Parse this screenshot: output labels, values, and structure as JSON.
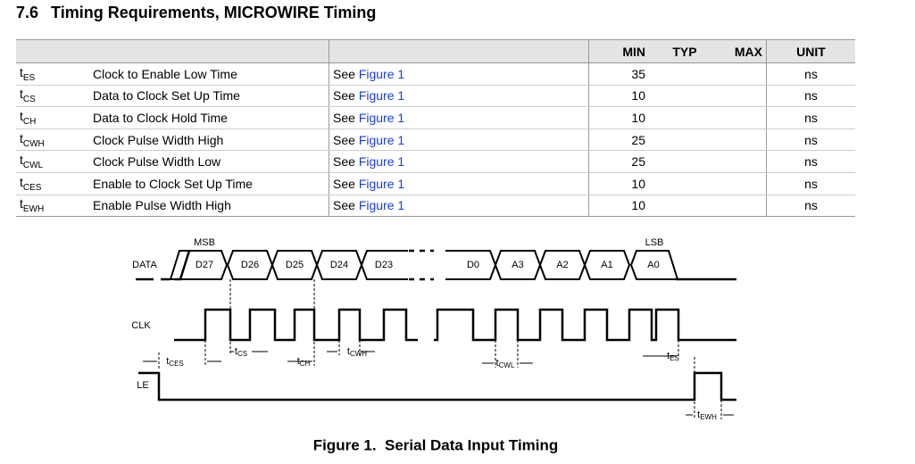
{
  "section": {
    "number": "7.6",
    "title": "Timing Requirements, MICROWIRE Timing"
  },
  "table": {
    "header": {
      "min": "MIN",
      "typ": "TYP",
      "max": "MAX",
      "unit": "UNIT"
    },
    "rows": [
      {
        "symbol": "t",
        "sub": "ES",
        "parameter": "Clock to Enable Low Time",
        "see": "See",
        "link": "Figure 1",
        "min": 35,
        "unit": "ns"
      },
      {
        "symbol": "t",
        "sub": "CS",
        "parameter": "Data to Clock Set Up Time",
        "see": "See",
        "link": "Figure 1",
        "min": 10,
        "unit": "ns"
      },
      {
        "symbol": "t",
        "sub": "CH",
        "parameter": "Data to Clock Hold Time",
        "see": "See",
        "link": "Figure 1",
        "min": 10,
        "unit": "ns"
      },
      {
        "symbol": "t",
        "sub": "CWH",
        "parameter": "Clock Pulse Width High",
        "see": "See",
        "link": "Figure 1",
        "min": 25,
        "unit": "ns"
      },
      {
        "symbol": "t",
        "sub": "CWL",
        "parameter": "Clock Pulse Width Low",
        "see": "See",
        "link": "Figure 1",
        "min": 25,
        "unit": "ns"
      },
      {
        "symbol": "t",
        "sub": "CES",
        "parameter": "Enable to Clock Set Up Time",
        "see": "See",
        "link": "Figure 1",
        "min": 10,
        "unit": "ns"
      },
      {
        "symbol": "t",
        "sub": "EWH",
        "parameter": "Enable Pulse Width High",
        "see": "See",
        "link": "Figure 1",
        "min": 10,
        "unit": "ns"
      }
    ]
  },
  "figure": {
    "signals": {
      "data": "DATA",
      "clk": "CLK",
      "le": "LE"
    },
    "msb": "MSB",
    "lsb": "LSB",
    "bits": [
      "D27",
      "D26",
      "D25",
      "D24",
      "D23",
      "D0",
      "A3",
      "A2",
      "A1",
      "A0"
    ],
    "timings": [
      {
        "t": "t",
        "sub": "CES"
      },
      {
        "t": "t",
        "sub": "CS"
      },
      {
        "t": "t",
        "sub": "CH"
      },
      {
        "t": "t",
        "sub": "CWH"
      },
      {
        "t": "t",
        "sub": "CWL"
      },
      {
        "t": "t",
        "sub": "ES"
      },
      {
        "t": "t",
        "sub": "EWH"
      }
    ],
    "caption": "Figure 1.  Serial Data Input Timing"
  }
}
